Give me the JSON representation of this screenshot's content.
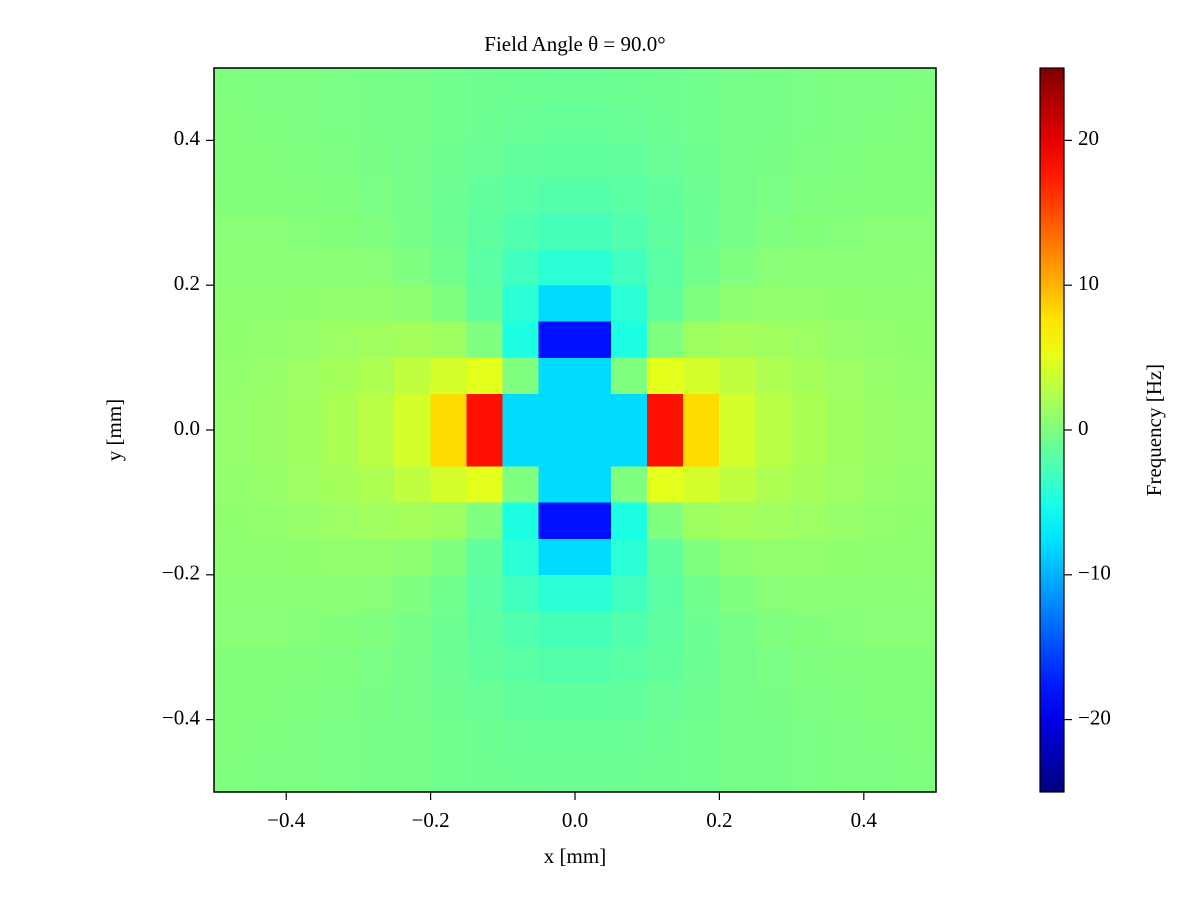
{
  "chart_data": {
    "type": "heatmap",
    "title": "Field Angle θ = 90.0°",
    "x_label": "x [mm]",
    "y_label": "y [mm]",
    "colorbar_label": "Frequency [Hz]",
    "colormap": "jet",
    "x": [
      -0.475,
      -0.425,
      -0.375,
      -0.325,
      -0.275,
      -0.225,
      -0.175,
      -0.125,
      -0.075,
      -0.025,
      0.025,
      0.075,
      0.125,
      0.175,
      0.225,
      0.275,
      0.325,
      0.375,
      0.425,
      0.475
    ],
    "y": [
      -0.475,
      -0.425,
      -0.375,
      -0.325,
      -0.275,
      -0.225,
      -0.175,
      -0.125,
      -0.075,
      -0.025,
      0.025,
      0.075,
      0.125,
      0.175,
      0.225,
      0.275,
      0.325,
      0.375,
      0.425,
      0.475
    ],
    "z": [
      [
        0,
        -0.1,
        -0.1,
        -0.2,
        -0.4,
        -0.5,
        -0.7,
        -0.8,
        -0.9,
        -1,
        -1,
        -0.9,
        -0.8,
        -0.7,
        -0.5,
        -0.4,
        -0.2,
        -0.1,
        -0.1,
        0
      ],
      [
        0.1,
        0,
        -0.1,
        -0.2,
        -0.4,
        -0.5,
        -0.7,
        -0.9,
        -1.1,
        -1.2,
        -1.2,
        -1.1,
        -0.9,
        -0.7,
        -0.5,
        -0.4,
        -0.2,
        -0.1,
        0,
        0.1
      ],
      [
        0.1,
        0.1,
        0,
        -0.1,
        -0.3,
        -0.5,
        -0.8,
        -1.1,
        -1.4,
        -1.5,
        -1.5,
        -1.4,
        -1.1,
        -0.8,
        -0.5,
        -0.3,
        -0.1,
        0,
        0.1,
        0.1
      ],
      [
        0.2,
        0.2,
        0.1,
        0,
        -0.2,
        -0.5,
        -0.9,
        -1.4,
        -1.8,
        -2.1,
        -2.1,
        -1.8,
        -1.4,
        -0.9,
        -0.5,
        -0.2,
        0,
        0.1,
        0.2,
        0.2
      ],
      [
        0.4,
        0.4,
        0.3,
        0.2,
        0,
        -0.4,
        -0.9,
        -1.6,
        -2.3,
        -2.8,
        -2.8,
        -2.3,
        -1.6,
        -0.9,
        -0.4,
        0,
        0.2,
        0.3,
        0.4,
        0.4
      ],
      [
        0.5,
        0.5,
        0.5,
        0.5,
        0.4,
        0,
        -0.7,
        -1.8,
        -3.1,
        -4.2,
        -4.2,
        -3.1,
        -1.8,
        -0.7,
        0,
        0.4,
        0.5,
        0.5,
        0.5,
        0.5
      ],
      [
        0.7,
        0.7,
        0.8,
        0.9,
        0.9,
        0.7,
        0,
        -1.5,
        -4.2,
        -8,
        -8,
        -4.2,
        -1.5,
        0,
        0.7,
        0.9,
        0.9,
        0.8,
        0.7,
        0.7
      ],
      [
        0.8,
        0.9,
        1.1,
        1.4,
        1.6,
        1.8,
        1.5,
        0,
        -4.9,
        -18,
        -18,
        -4.9,
        0,
        1.5,
        1.8,
        1.6,
        1.4,
        1.1,
        0.9,
        0.8
      ],
      [
        0.9,
        1.1,
        1.4,
        1.8,
        2.3,
        3.1,
        4.2,
        4.9,
        0,
        -8,
        -8,
        0,
        4.9,
        4.2,
        3.1,
        2.3,
        1.8,
        1.4,
        1.1,
        0.9
      ],
      [
        1,
        1.2,
        1.5,
        2.1,
        2.8,
        4.2,
        8,
        18,
        -8,
        -8,
        -8,
        -8,
        18,
        8,
        4.2,
        2.8,
        2.1,
        1.5,
        1.2,
        1
      ],
      [
        1,
        1.2,
        1.5,
        2.1,
        2.8,
        4.2,
        8,
        18,
        -8,
        -8,
        -8,
        -8,
        18,
        8,
        4.2,
        2.8,
        2.1,
        1.5,
        1.2,
        1
      ],
      [
        0.9,
        1.1,
        1.4,
        1.8,
        2.3,
        3.1,
        4.2,
        4.9,
        0,
        -8,
        -8,
        0,
        4.9,
        4.2,
        3.1,
        2.3,
        1.8,
        1.4,
        1.1,
        0.9
      ],
      [
        0.8,
        0.9,
        1.1,
        1.4,
        1.6,
        1.8,
        1.5,
        0,
        -4.9,
        -18,
        -18,
        -4.9,
        0,
        1.5,
        1.8,
        1.6,
        1.4,
        1.1,
        0.9,
        0.8
      ],
      [
        0.7,
        0.7,
        0.8,
        0.9,
        0.9,
        0.7,
        0,
        -1.5,
        -4.2,
        -8,
        -8,
        -4.2,
        -1.5,
        0,
        0.7,
        0.9,
        0.9,
        0.8,
        0.7,
        0.7
      ],
      [
        0.5,
        0.5,
        0.5,
        0.5,
        0.4,
        0,
        -0.7,
        -1.8,
        -3.1,
        -4.2,
        -4.2,
        -3.1,
        -1.8,
        -0.7,
        0,
        0.4,
        0.5,
        0.5,
        0.5,
        0.5
      ],
      [
        0.4,
        0.4,
        0.3,
        0.2,
        0,
        -0.4,
        -0.9,
        -1.6,
        -2.3,
        -2.8,
        -2.8,
        -2.3,
        -1.6,
        -0.9,
        -0.4,
        0,
        0.2,
        0.3,
        0.4,
        0.4
      ],
      [
        0.2,
        0.2,
        0.1,
        0,
        -0.2,
        -0.5,
        -0.9,
        -1.4,
        -1.8,
        -2.1,
        -2.1,
        -1.8,
        -1.4,
        -0.9,
        -0.5,
        -0.2,
        0,
        0.1,
        0.2,
        0.2
      ],
      [
        0.1,
        0.1,
        0,
        -0.1,
        -0.3,
        -0.5,
        -0.8,
        -1.1,
        -1.4,
        -1.5,
        -1.5,
        -1.4,
        -1.1,
        -0.8,
        -0.5,
        -0.3,
        -0.1,
        0,
        0.1,
        0.1
      ],
      [
        0.1,
        0,
        -0.1,
        -0.2,
        -0.4,
        -0.5,
        -0.7,
        -0.9,
        -1.1,
        -1.2,
        -1.2,
        -1.1,
        -0.9,
        -0.7,
        -0.5,
        -0.4,
        -0.2,
        -0.1,
        0,
        0.1
      ],
      [
        0,
        -0.1,
        -0.1,
        -0.2,
        -0.4,
        -0.5,
        -0.7,
        -0.8,
        -0.9,
        -1,
        -1,
        -0.9,
        -0.8,
        -0.7,
        -0.5,
        -0.4,
        -0.2,
        -0.1,
        -0.1,
        0
      ]
    ],
    "xlim": [
      -0.5,
      0.5
    ],
    "ylim": [
      -0.5,
      0.5
    ],
    "xticks": [
      {
        "value": -0.4,
        "label": "−0.4"
      },
      {
        "value": -0.2,
        "label": "−0.2"
      },
      {
        "value": 0,
        "label": "0.0"
      },
      {
        "value": 0.2,
        "label": "0.2"
      },
      {
        "value": 0.4,
        "label": "0.4"
      }
    ],
    "yticks": [
      {
        "value": -0.4,
        "label": "−0.4"
      },
      {
        "value": -0.2,
        "label": "−0.2"
      },
      {
        "value": 0,
        "label": "0.0"
      },
      {
        "value": 0.2,
        "label": "0.2"
      },
      {
        "value": 0.4,
        "label": "0.4"
      }
    ],
    "clim": [
      -25,
      25
    ],
    "cticks": [
      {
        "value": -20,
        "label": "−20"
      },
      {
        "value": -10,
        "label": "−10"
      },
      0,
      10,
      20
    ]
  }
}
